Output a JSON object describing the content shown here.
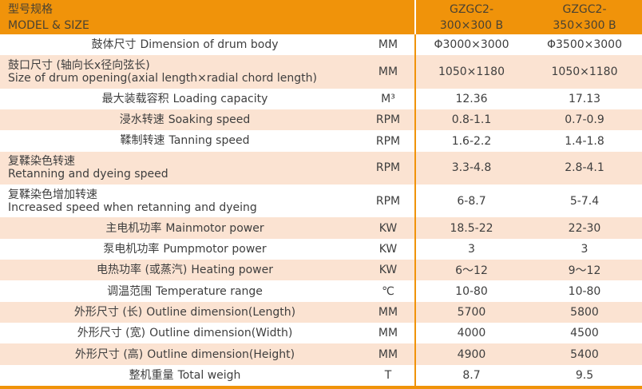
{
  "table": {
    "header": {
      "title_cn": "型号规格",
      "title_en": "MODEL & SIZE",
      "columns": [
        {
          "line1": "GZGC2-",
          "line2": "300×300 B"
        },
        {
          "line1": "GZGC2-",
          "line2": "350×300 B"
        }
      ]
    },
    "rows": [
      {
        "label_cn": "鼓体尺寸",
        "label_en": "Dimension of drum body",
        "unit": "MM",
        "values": [
          "Φ3000×3000",
          "Φ3500×3000"
        ],
        "two_line": false
      },
      {
        "label_cn": "鼓口尺寸 (轴向长x径向弦长)",
        "label_en": "Size of drum opening(axial length×radial chord length)",
        "unit": "MM",
        "values": [
          "1050×1180",
          "1050×1180"
        ],
        "two_line": true
      },
      {
        "label_cn": "最大装载容积",
        "label_en": "Loading capacity",
        "unit": "M³",
        "values": [
          "12.36",
          "17.13"
        ],
        "two_line": false
      },
      {
        "label_cn": "浸水转速",
        "label_en": "Soaking speed",
        "unit": "RPM",
        "values": [
          "0.8-1.1",
          "0.7-0.9"
        ],
        "two_line": false
      },
      {
        "label_cn": "鞣制转速",
        "label_en": "Tanning speed",
        "unit": "RPM",
        "values": [
          "1.6-2.2",
          "1.4-1.8"
        ],
        "two_line": false
      },
      {
        "label_cn": "复鞣染色转速",
        "label_en": "Retanning and dyeing speed",
        "unit": "RPM",
        "values": [
          "3.3-4.8",
          "2.8-4.1"
        ],
        "two_line": true
      },
      {
        "label_cn": "复鞣染色增加转速",
        "label_en": "Increased speed when retanning and dyeing",
        "unit": "RPM",
        "values": [
          "6-8.7",
          "5-7.4"
        ],
        "two_line": true
      },
      {
        "label_cn": "主电机功率",
        "label_en": "Mainmotor power",
        "unit": "KW",
        "values": [
          "18.5-22",
          "22-30"
        ],
        "two_line": false
      },
      {
        "label_cn": "泵电机功率",
        "label_en": "Pumpmotor power",
        "unit": "KW",
        "values": [
          "3",
          "3"
        ],
        "two_line": false
      },
      {
        "label_cn": "电热功率 (或蒸汽)",
        "label_en": "Heating power",
        "unit": "KW",
        "values": [
          "6～12",
          "9～12"
        ],
        "two_line": false
      },
      {
        "label_cn": "调温范围",
        "label_en": "Temperature range",
        "unit": "℃",
        "values": [
          "10-80",
          "10-80"
        ],
        "two_line": false
      },
      {
        "label_cn": "外形尺寸 (长)",
        "label_en": "Outline dimension(Length)",
        "unit": "MM",
        "values": [
          "5700",
          "5800"
        ],
        "two_line": false
      },
      {
        "label_cn": "外形尺寸 (宽)",
        "label_en": "Outline dimension(Width)",
        "unit": "MM",
        "values": [
          "4000",
          "4500"
        ],
        "two_line": false
      },
      {
        "label_cn": "外形尺寸 (高)",
        "label_en": "Outline dimension(Height)",
        "unit": "MM",
        "values": [
          "4900",
          "5400"
        ],
        "two_line": false
      },
      {
        "label_cn": "整机重量",
        "label_en": "Total weigh",
        "unit": "T",
        "values": [
          "8.7",
          "9.5"
        ],
        "two_line": false
      }
    ],
    "colors": {
      "accent_orange": "#F0930A",
      "row_alt_peach": "#FBE3D2",
      "divider_white": "#FFFFFF",
      "text_dark": "#3E3E3E"
    }
  }
}
